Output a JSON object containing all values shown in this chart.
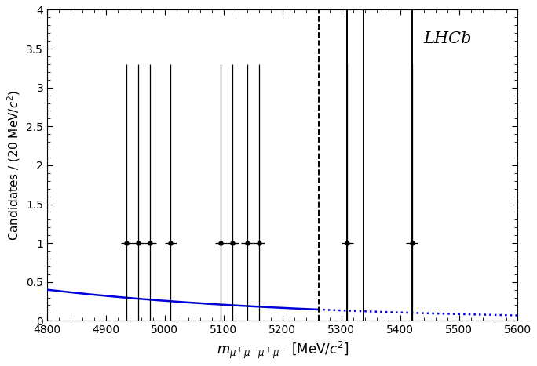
{
  "xlim": [
    4800,
    5600
  ],
  "ylim": [
    0,
    4
  ],
  "ylabel": "Candidates / (20 MeV/$c^2$)",
  "label_text": "LHCb",
  "data_x": [
    4935,
    4955,
    4975,
    5010,
    5095,
    5115,
    5140,
    5160,
    5310,
    5420
  ],
  "data_y": [
    1,
    1,
    1,
    1,
    1,
    1,
    1,
    1,
    1,
    1
  ],
  "data_yerr_up": [
    2.3,
    2.3,
    2.3,
    2.3,
    2.3,
    2.3,
    2.3,
    2.3,
    2.3,
    2.3
  ],
  "data_yerr_down": [
    1,
    1,
    1,
    1,
    1,
    1,
    1,
    1,
    1,
    1
  ],
  "data_xerr": [
    10,
    10,
    10,
    10,
    10,
    10,
    10,
    10,
    10,
    10
  ],
  "bg_x_start": 4800,
  "bg_x_solid_end": 5260,
  "bg_x_end": 5600,
  "bg_A": 0.4,
  "bg_decay": 0.0022,
  "vline_dashed": 5262,
  "vlines_solid": [
    5310,
    5338,
    5420
  ],
  "xticks": [
    4800,
    4900,
    5000,
    5100,
    5200,
    5300,
    5400,
    5500,
    5600
  ],
  "yticks": [
    0,
    0.5,
    1,
    1.5,
    2,
    2.5,
    3,
    3.5,
    4
  ],
  "bg_color": "#0000dd",
  "data_color": "black",
  "figsize": [
    6.84,
    4.67
  ],
  "dpi": 100
}
